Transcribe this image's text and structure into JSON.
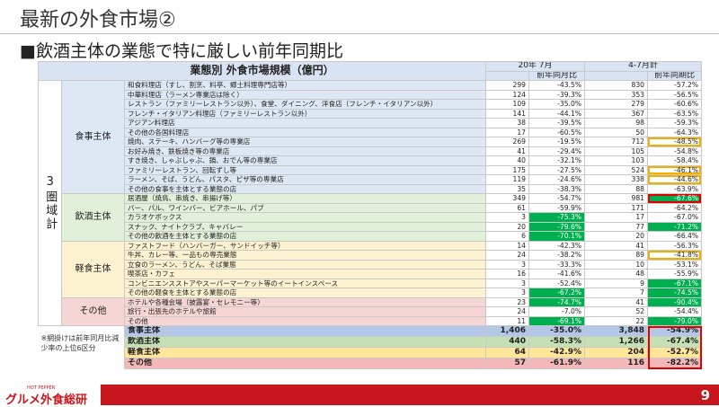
{
  "header": {
    "title": "最新の外食市場②",
    "subtitle": "■飲酒主体の業態で特に厳しい前年同期比"
  },
  "table": {
    "caption": "業態別 外食市場規模（億円）",
    "periods": [
      "20年 7月",
      "4-7月計"
    ],
    "measures": [
      "前年同月比",
      "前年同期比"
    ],
    "region": "3圏域計",
    "groups": [
      {
        "name": "食事主体",
        "rows": [
          [
            "和食料理店（すし、割烹、料亭、郷土料理専門店等）",
            "299",
            "-43.5%",
            "830",
            "-57.2%"
          ],
          [
            "中華料理店（ラーメン専業店は除く）",
            "124",
            "-39.3%",
            "353",
            "-56.5%"
          ],
          [
            "レストラン（ファミリーレストラン以外）、食堂、ダイニング、洋食店（フレンチ・イタリアン以外）",
            "109",
            "-35.0%",
            "279",
            "-60.6%"
          ],
          [
            "フレンチ・イタリアン料理店（ファミリーレストラン以外）",
            "141",
            "-44.1%",
            "367",
            "-63.5%"
          ],
          [
            "アジアン料理店",
            "38",
            "-39.5%",
            "98",
            "-59.3%"
          ],
          [
            "その他の各国料理店",
            "17",
            "-60.5%",
            "50",
            "-64.3%"
          ],
          [
            "焼肉、ステーキ、ハンバーグ等の専業店",
            "269",
            "-19.5%",
            "712",
            "-48.5%"
          ],
          [
            "お好み焼き、鉄板焼き等の専業店",
            "41",
            "-29.4%",
            "105",
            "-54.8%"
          ],
          [
            "すき焼き、しゃぶしゃぶ、鍋、おでん等の専業店",
            "40",
            "-32.1%",
            "103",
            "-58.4%"
          ],
          [
            "ファミリーレストラン、回転ずし等",
            "175",
            "-27.5%",
            "524",
            "-46.1%"
          ],
          [
            "ラーメン、そば、うどん、パスタ、ピザ等の専業店",
            "119",
            "-24.6%",
            "338",
            "-44.6%"
          ],
          [
            "その他の食事を主体とする業態の店",
            "35",
            "-38.3%",
            "88",
            "-63.9%"
          ]
        ]
      },
      {
        "name": "飲酒主体",
        "rows": [
          [
            "居酒屋（焼鳥、串焼き、串揚げ等）",
            "349",
            "-54.7%",
            "981",
            "-67.6%"
          ],
          [
            "バー、パル、ワインバー、ビアホール、パブ",
            "61",
            "-59.9%",
            "171",
            "-64.2%"
          ],
          [
            "カラオケボックス",
            "3",
            "-75.3%",
            "17",
            "-67.0%"
          ],
          [
            "スナック、ナイトクラブ、キャバレー",
            "20",
            "-79.6%",
            "77",
            "-71.2%"
          ],
          [
            "その他の飲酒を主体とする業態の店",
            "6",
            "-70.1%",
            "20",
            "-66.4%"
          ]
        ]
      },
      {
        "name": "軽食主体",
        "rows": [
          [
            "ファストフード（ハンバーガー、サンドイッチ等）",
            "14",
            "-42.3%",
            "41",
            "-56.3%"
          ],
          [
            "牛丼、カレー等、一品もの専売業態",
            "24",
            "-38.2%",
            "89",
            "-41.8%"
          ],
          [
            "立食のラーメン、うどん、そば業態",
            "3",
            "-33.3%",
            "10",
            "-53.1%"
          ],
          [
            "喫茶店・カフェ",
            "16",
            "-41.6%",
            "48",
            "-55.9%"
          ],
          [
            "コンビニエンスストアやスーパーマーケット等のイートインスペース",
            "3",
            "-52.4%",
            "9",
            "-67.1%"
          ],
          [
            "その他の軽食を主体とする業態の店",
            "3",
            "-67.2%",
            "7",
            "-74.5%"
          ]
        ]
      },
      {
        "name": "その他",
        "rows": [
          [
            "ホテルや各種会場（披露宴・セレモニー等）",
            "23",
            "-74.7%",
            "41",
            "-90.4%"
          ],
          [
            "旅行・出張先のホテルや旅館",
            "24",
            "-7.0%",
            "52",
            "-54.4%"
          ],
          [
            "その他",
            "11",
            "-69.1%",
            "22",
            "-79.0%"
          ]
        ]
      }
    ],
    "totals": [
      [
        "食事主体",
        "1,406",
        "-35.0%",
        "3,848",
        "-54.9%"
      ],
      [
        "飲酒主体",
        "440",
        "-58.3%",
        "1,266",
        "-67.4%"
      ],
      [
        "軽食主体",
        "64",
        "-42.9%",
        "204",
        "-52.7%"
      ],
      [
        "その他",
        "57",
        "-61.9%",
        "116",
        "-82.2%"
      ]
    ],
    "note": "※網掛けは前年同月比減少率の上位6区分"
  },
  "footer": {
    "brand_small": "HOT PEPPER",
    "brand": "グルメ外食総研",
    "page": "9"
  }
}
